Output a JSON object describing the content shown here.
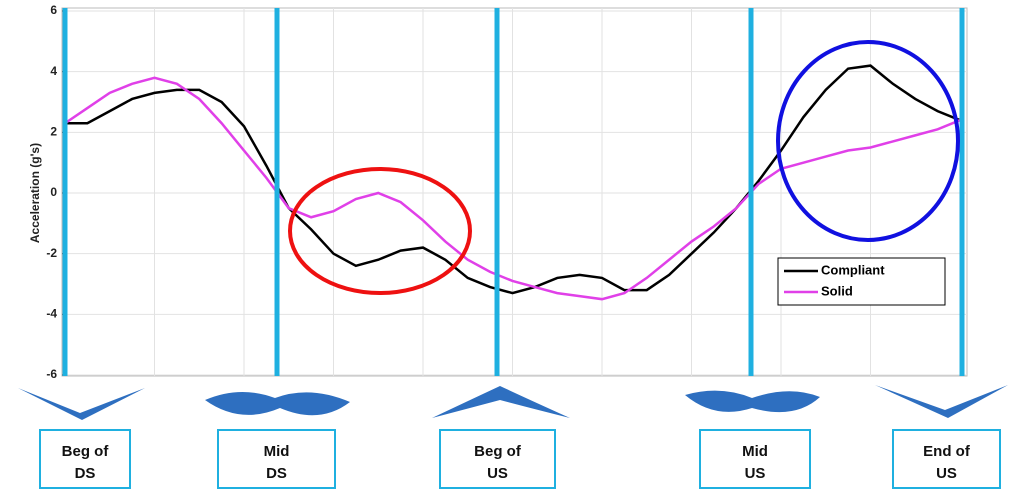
{
  "chart_data": {
    "type": "line",
    "y_label": "Acceleration (g's)",
    "ylim": [
      -6,
      6
    ],
    "yticks": [
      -6,
      -4,
      -2,
      0,
      2,
      4,
      6
    ],
    "grid": true,
    "legend": "right",
    "series": [
      {
        "name": "Compliant",
        "color": "#000000",
        "values": [
          2.3,
          2.3,
          2.7,
          3.1,
          3.3,
          3.4,
          3.4,
          3.0,
          2.2,
          0.9,
          -0.5,
          -1.2,
          -2.0,
          -2.4,
          -2.2,
          -1.9,
          -1.8,
          -2.2,
          -2.8,
          -3.1,
          -3.3,
          -3.1,
          -2.8,
          -2.7,
          -2.8,
          -3.2,
          -3.2,
          -2.7,
          -2.0,
          -1.3,
          -0.5,
          0.4,
          1.4,
          2.5,
          3.4,
          4.1,
          4.2,
          3.6,
          3.1,
          2.7,
          2.4
        ]
      },
      {
        "name": "Solid",
        "color": "#e040e8",
        "values": [
          2.3,
          2.8,
          3.3,
          3.6,
          3.8,
          3.6,
          3.1,
          2.3,
          1.4,
          0.5,
          -0.5,
          -0.8,
          -0.6,
          -0.2,
          0,
          -0.3,
          -0.9,
          -1.6,
          -2.2,
          -2.6,
          -2.9,
          -3.1,
          -3.3,
          -3.4,
          -3.5,
          -3.3,
          -2.8,
          -2.2,
          -1.6,
          -1.1,
          -0.5,
          0.3,
          0.8,
          1.0,
          1.2,
          1.4,
          1.5,
          1.7,
          1.9,
          2.1,
          2.4
        ]
      }
    ],
    "phase_labels": [
      [
        "Beg of",
        "DS"
      ],
      [
        "Mid",
        "DS"
      ],
      [
        "Beg of",
        "US"
      ],
      [
        "Mid",
        "US"
      ],
      [
        "End of",
        "US"
      ]
    ]
  }
}
